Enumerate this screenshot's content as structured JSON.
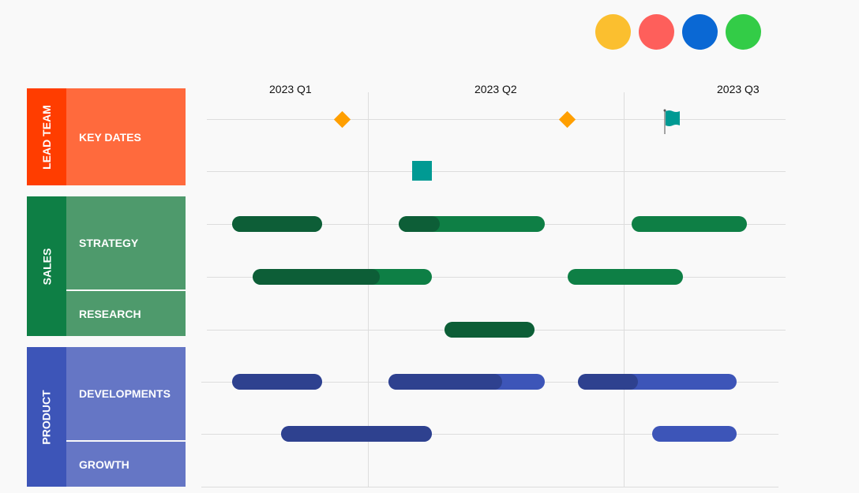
{
  "legend_colors": [
    "#fbbf2f",
    "#fe5f5b",
    "#0a68d4",
    "#33cc47"
  ],
  "chart_data": {
    "type": "gantt",
    "quarters": [
      "2023 Q1",
      "2023 Q2",
      "2023 Q3"
    ],
    "time_unit": "quarters",
    "groups": [
      {
        "label": "LEAD TEAM",
        "color": "#ff3d00",
        "sub_color": "#ff6a3d",
        "rows": [
          {
            "label": "KEY DATES"
          }
        ]
      },
      {
        "label": "SALES",
        "color": "#0e7f45",
        "sub_color": "#4e9a6c",
        "rows": [
          {
            "label": "STRATEGY"
          },
          {
            "label": "RESEARCH"
          }
        ]
      },
      {
        "label": "PRODUCT",
        "color": "#3d55b8",
        "sub_color": "#6576c5",
        "rows": [
          {
            "label": "DEVELOPMENTS"
          },
          {
            "label": "GROWTH"
          }
        ]
      }
    ],
    "milestones": [
      {
        "lane": 0,
        "type": "diamond",
        "at": 0.9,
        "color": "#ff9f00"
      },
      {
        "lane": 0,
        "type": "diamond",
        "at": 1.78,
        "color": "#ff9f00"
      },
      {
        "lane": 0,
        "type": "flag",
        "at": 2.16,
        "color": "#009a93"
      },
      {
        "lane": 1,
        "type": "square",
        "at": 1.21,
        "color": "#009a93"
      }
    ],
    "bars": [
      {
        "lane": 2,
        "start": 0.47,
        "end": 0.82,
        "progress": 1,
        "color": "#0e7f45",
        "done_color": "#0d5e37"
      },
      {
        "lane": 2,
        "start": 1.12,
        "end": 1.69,
        "progress": 0.28,
        "color": "#0e7f45",
        "done_color": "#0d5e37"
      },
      {
        "lane": 2,
        "start": 2.03,
        "end": 2.48,
        "progress": 0,
        "color": "#0e7f45",
        "done_color": "#0d5e37"
      },
      {
        "lane": 3,
        "start": 0.55,
        "end": 1.25,
        "progress": 0.71,
        "color": "#0e7f45",
        "done_color": "#0d5e37"
      },
      {
        "lane": 3,
        "start": 1.78,
        "end": 2.23,
        "progress": 0,
        "color": "#0e7f45",
        "done_color": "#0d5e37"
      },
      {
        "lane": 4,
        "start": 1.3,
        "end": 1.65,
        "progress": 1,
        "color": "#0e7f45",
        "done_color": "#0d5e37"
      },
      {
        "lane": 5,
        "start": 0.47,
        "end": 0.82,
        "progress": 1,
        "color": "#3d55b8",
        "done_color": "#2e418f"
      },
      {
        "lane": 5,
        "start": 1.08,
        "end": 1.69,
        "progress": 0.73,
        "color": "#3d55b8",
        "done_color": "#2e418f"
      },
      {
        "lane": 5,
        "start": 1.82,
        "end": 2.44,
        "progress": 0.38,
        "color": "#3d55b8",
        "done_color": "#2e418f"
      },
      {
        "lane": 6,
        "start": 0.66,
        "end": 1.25,
        "progress": 1,
        "color": "#3d55b8",
        "done_color": "#2e418f"
      },
      {
        "lane": 6,
        "start": 2.11,
        "end": 2.44,
        "progress": 0,
        "color": "#3d55b8",
        "done_color": "#2e418f"
      }
    ]
  }
}
